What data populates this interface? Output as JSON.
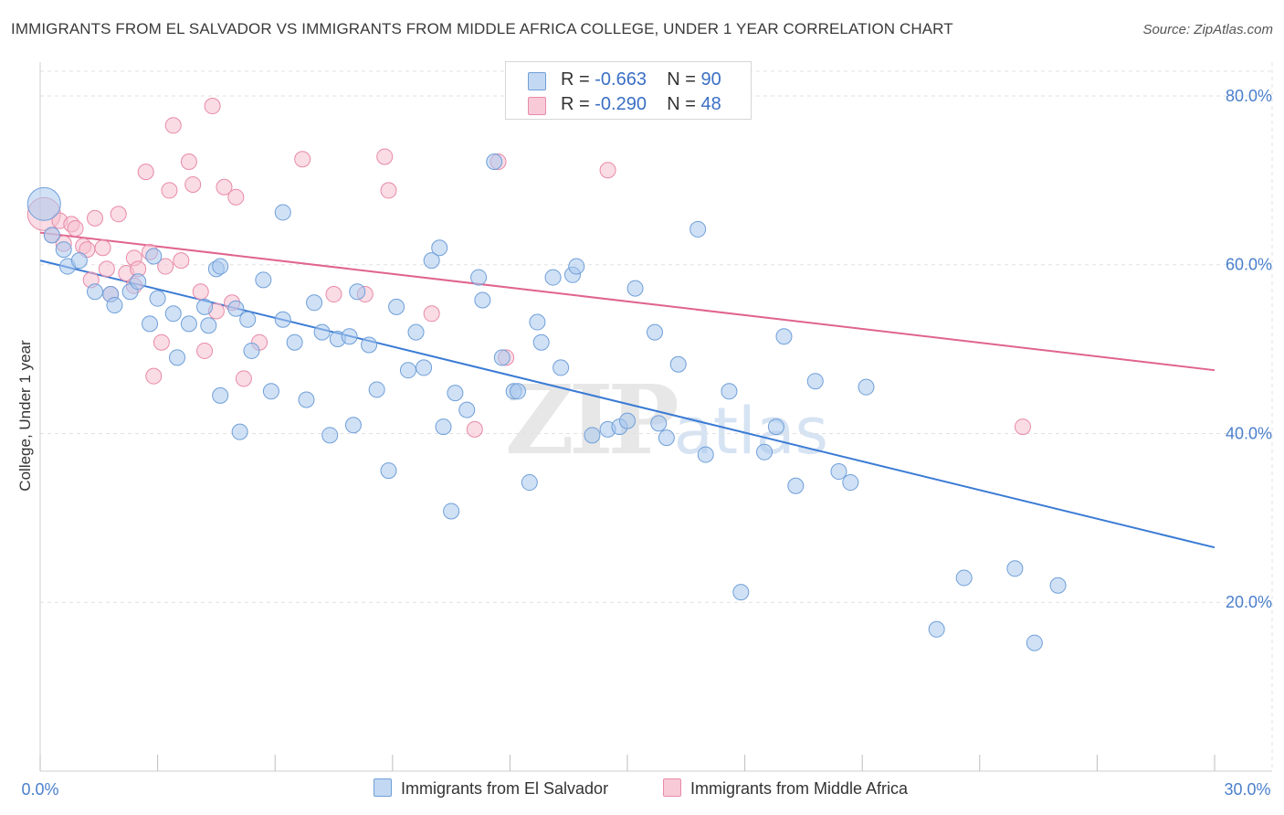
{
  "title": "IMMIGRANTS FROM EL SALVADOR VS IMMIGRANTS FROM MIDDLE AFRICA COLLEGE, UNDER 1 YEAR CORRELATION CHART",
  "source": "Source: ZipAtlas.com",
  "watermark": {
    "zip": "ZIP",
    "atlas": "atlas"
  },
  "legend": {
    "series1": {
      "r_label": "R =",
      "r_value": "-0.663",
      "n_label": "N =",
      "n_value": "90"
    },
    "series2": {
      "r_label": "R =",
      "r_value": "-0.290",
      "n_label": "N =",
      "n_value": "48"
    }
  },
  "colors": {
    "blue_fill": "#aac8ee",
    "blue_stroke": "#6f9fd8",
    "blue_line": "#3a7bd5",
    "pink_fill": "#f6bfd0",
    "pink_stroke": "#e88aa8",
    "pink_line": "#e0648e",
    "grid": "#e0e0e0",
    "tick_text": "#4a7fcc"
  },
  "chart_data": {
    "type": "scatter",
    "title": "IMMIGRANTS FROM EL SALVADOR VS IMMIGRANTS FROM MIDDLE AFRICA COLLEGE, UNDER 1 YEAR CORRELATION CHART",
    "xlabel": "",
    "ylabel": "College, Under 1 year",
    "xlim": [
      0,
      30
    ],
    "ylim": [
      0,
      84
    ],
    "x_tick_labels": [
      "0.0%",
      "30.0%"
    ],
    "y_ticks": [
      20,
      40,
      60,
      80
    ],
    "y_tick_labels": [
      "20.0%",
      "40.0%",
      "60.0%",
      "80.0%"
    ],
    "grid": true,
    "legend_position": "top-center",
    "series": [
      {
        "name": "Immigrants from El Salvador",
        "color": "#6f9fd8",
        "trend": [
          [
            0,
            60.5
          ],
          [
            30,
            26.5
          ]
        ],
        "points": [
          [
            0.1,
            67.2,
            "big"
          ],
          [
            0.3,
            63.5
          ],
          [
            0.6,
            61.8
          ],
          [
            0.7,
            59.8
          ],
          [
            1.0,
            60.5
          ],
          [
            1.4,
            56.8
          ],
          [
            1.8,
            56.5
          ],
          [
            1.9,
            55.2
          ],
          [
            2.3,
            56.8
          ],
          [
            2.5,
            58.0
          ],
          [
            2.8,
            53.0
          ],
          [
            2.9,
            61.0
          ],
          [
            3.0,
            56.0
          ],
          [
            3.4,
            54.2
          ],
          [
            3.5,
            49.0
          ],
          [
            3.8,
            53.0
          ],
          [
            4.2,
            55.0
          ],
          [
            4.3,
            52.8
          ],
          [
            4.5,
            59.5
          ],
          [
            4.6,
            59.8
          ],
          [
            4.6,
            44.5
          ],
          [
            5.0,
            54.8
          ],
          [
            5.1,
            40.2
          ],
          [
            5.3,
            53.5
          ],
          [
            5.4,
            49.8
          ],
          [
            5.7,
            58.2
          ],
          [
            5.9,
            45.0
          ],
          [
            6.2,
            66.2
          ],
          [
            6.2,
            53.5
          ],
          [
            6.5,
            50.8
          ],
          [
            6.8,
            44.0
          ],
          [
            7.0,
            55.5
          ],
          [
            7.2,
            52.0
          ],
          [
            7.4,
            39.8
          ],
          [
            7.6,
            51.2
          ],
          [
            7.9,
            51.5
          ],
          [
            8.0,
            41.0
          ],
          [
            8.1,
            56.8
          ],
          [
            8.4,
            50.5
          ],
          [
            8.6,
            45.2
          ],
          [
            8.9,
            35.6
          ],
          [
            9.1,
            55.0
          ],
          [
            9.4,
            47.5
          ],
          [
            9.6,
            52.0
          ],
          [
            9.8,
            47.8
          ],
          [
            10.0,
            60.5
          ],
          [
            10.2,
            62.0
          ],
          [
            10.3,
            40.8
          ],
          [
            10.5,
            30.8
          ],
          [
            10.6,
            44.8
          ],
          [
            10.9,
            42.8
          ],
          [
            11.2,
            58.5
          ],
          [
            11.3,
            55.8
          ],
          [
            11.6,
            72.2
          ],
          [
            11.8,
            49.0
          ],
          [
            12.1,
            45.0
          ],
          [
            12.2,
            45.0
          ],
          [
            12.5,
            34.2
          ],
          [
            12.7,
            53.2
          ],
          [
            12.8,
            50.8
          ],
          [
            13.1,
            58.5
          ],
          [
            13.3,
            47.8
          ],
          [
            13.6,
            58.8
          ],
          [
            13.7,
            59.8
          ],
          [
            14.1,
            39.8
          ],
          [
            14.5,
            40.5
          ],
          [
            14.8,
            40.8
          ],
          [
            15.0,
            41.5
          ],
          [
            15.2,
            57.2
          ],
          [
            15.7,
            52.0
          ],
          [
            15.8,
            41.2
          ],
          [
            16.0,
            39.5
          ],
          [
            16.3,
            48.2
          ],
          [
            16.8,
            64.2
          ],
          [
            17.0,
            37.5
          ],
          [
            17.6,
            45.0
          ],
          [
            17.9,
            21.2
          ],
          [
            18.5,
            37.8
          ],
          [
            18.8,
            40.8
          ],
          [
            19.0,
            51.5
          ],
          [
            19.3,
            33.8
          ],
          [
            19.8,
            46.2
          ],
          [
            20.4,
            35.5
          ],
          [
            20.7,
            34.2
          ],
          [
            21.1,
            45.5
          ],
          [
            22.9,
            16.8
          ],
          [
            23.6,
            22.9
          ],
          [
            24.9,
            24.0
          ],
          [
            25.4,
            15.2
          ],
          [
            26.0,
            22.0
          ]
        ]
      },
      {
        "name": "Immigrants from Middle Africa",
        "color": "#e88aa8",
        "trend": [
          [
            0,
            63.8
          ],
          [
            30,
            47.5
          ]
        ],
        "points": [
          [
            0.1,
            66.0,
            "big"
          ],
          [
            0.3,
            63.5
          ],
          [
            0.5,
            65.2
          ],
          [
            0.6,
            62.5
          ],
          [
            0.8,
            64.8
          ],
          [
            0.9,
            64.3
          ],
          [
            1.1,
            62.2
          ],
          [
            1.2,
            61.8
          ],
          [
            1.3,
            58.2
          ],
          [
            1.4,
            65.5
          ],
          [
            1.6,
            62.0
          ],
          [
            1.7,
            59.5
          ],
          [
            1.8,
            56.5
          ],
          [
            2.0,
            66.0
          ],
          [
            2.2,
            59.0
          ],
          [
            2.4,
            60.8
          ],
          [
            2.5,
            59.5
          ],
          [
            2.4,
            57.5
          ],
          [
            2.7,
            71.0
          ],
          [
            2.8,
            61.5
          ],
          [
            2.9,
            46.8
          ],
          [
            3.1,
            50.8
          ],
          [
            3.2,
            59.8
          ],
          [
            3.3,
            68.8
          ],
          [
            3.4,
            76.5
          ],
          [
            3.6,
            60.5
          ],
          [
            3.8,
            72.2
          ],
          [
            3.9,
            69.5
          ],
          [
            4.2,
            49.8
          ],
          [
            4.1,
            56.8
          ],
          [
            4.4,
            78.8
          ],
          [
            4.5,
            54.5
          ],
          [
            4.7,
            69.2
          ],
          [
            4.9,
            55.5
          ],
          [
            5.0,
            68.0
          ],
          [
            5.2,
            46.5
          ],
          [
            5.6,
            50.8
          ],
          [
            6.7,
            72.5
          ],
          [
            7.5,
            56.5
          ],
          [
            8.3,
            56.5
          ],
          [
            8.8,
            72.8
          ],
          [
            8.9,
            68.8
          ],
          [
            10.0,
            54.2
          ],
          [
            11.1,
            40.5
          ],
          [
            11.7,
            72.2
          ],
          [
            11.9,
            49.0
          ],
          [
            14.5,
            71.2
          ],
          [
            25.1,
            40.8
          ]
        ]
      }
    ]
  }
}
